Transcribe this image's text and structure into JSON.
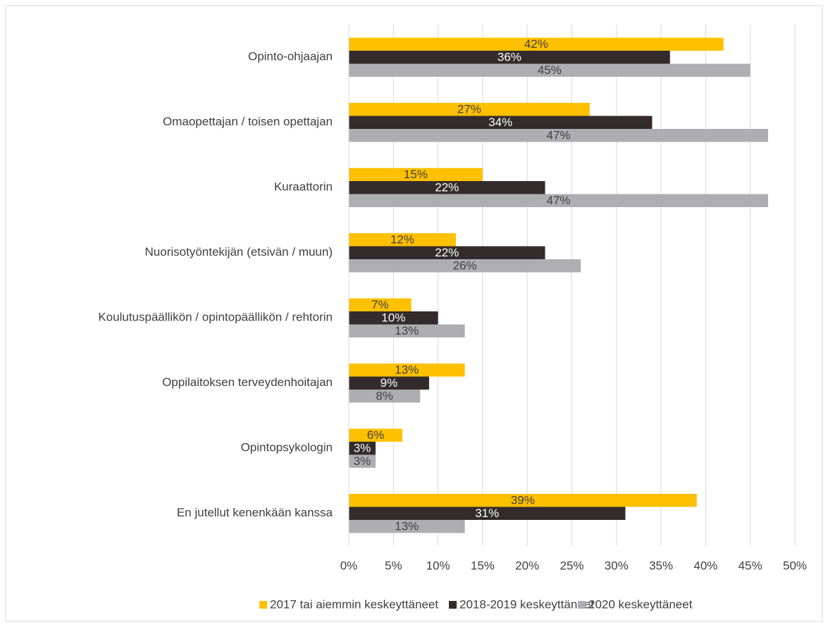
{
  "chart_data": {
    "type": "bar",
    "orientation": "horizontal",
    "categories": [
      "Opinto-ohjaajan",
      "Omaopettajan / toisen opettajan",
      "Kuraattorin",
      "Nuorisotyöntekijän (etsivän / muun)",
      "Koulutuspäällikön / opintopäällikön / rehtorin",
      "Oppilaitoksen terveydenhoitajan",
      "Opintopsykologin",
      "En jutellut kenenkään kanssa"
    ],
    "series": [
      {
        "name": "2017 tai aiemmin keskeyttäneet",
        "color": "#ffc000",
        "values": [
          42,
          27,
          15,
          12,
          7,
          13,
          6,
          39
        ],
        "value_labels": [
          "42%",
          "27%",
          "15%",
          "12%",
          "7%",
          "13%",
          "6%",
          "39%"
        ]
      },
      {
        "name": "2018-2019 keskeyttäneet",
        "color": "#342c2c",
        "values": [
          36,
          34,
          22,
          22,
          10,
          9,
          3,
          31
        ],
        "value_labels": [
          "36%",
          "34%",
          "22%",
          "22%",
          "10%",
          "9%",
          "3%",
          "31%"
        ]
      },
      {
        "name": "2020 keskeyttäneet",
        "color": "#aeaeb2",
        "values": [
          45,
          47,
          47,
          26,
          13,
          8,
          3,
          13
        ],
        "value_labels": [
          "45%",
          "47%",
          "47%",
          "26%",
          "13%",
          "8%",
          "3%",
          "13%"
        ]
      }
    ],
    "xlim": [
      0,
      50
    ],
    "xticks": [
      {
        "value": 0,
        "label": "0%"
      },
      {
        "value": 5,
        "label": "5%"
      },
      {
        "value": 10,
        "label": "10%"
      },
      {
        "value": 15,
        "label": "15%"
      },
      {
        "value": 20,
        "label": "20%"
      },
      {
        "value": 25,
        "label": "25%"
      },
      {
        "value": 30,
        "label": "30%"
      },
      {
        "value": 35,
        "label": "35%"
      },
      {
        "value": 40,
        "label": "40%"
      },
      {
        "value": 45,
        "label": "45%"
      },
      {
        "value": 50,
        "label": "50%"
      }
    ],
    "grid": true,
    "legend": "bottom"
  }
}
